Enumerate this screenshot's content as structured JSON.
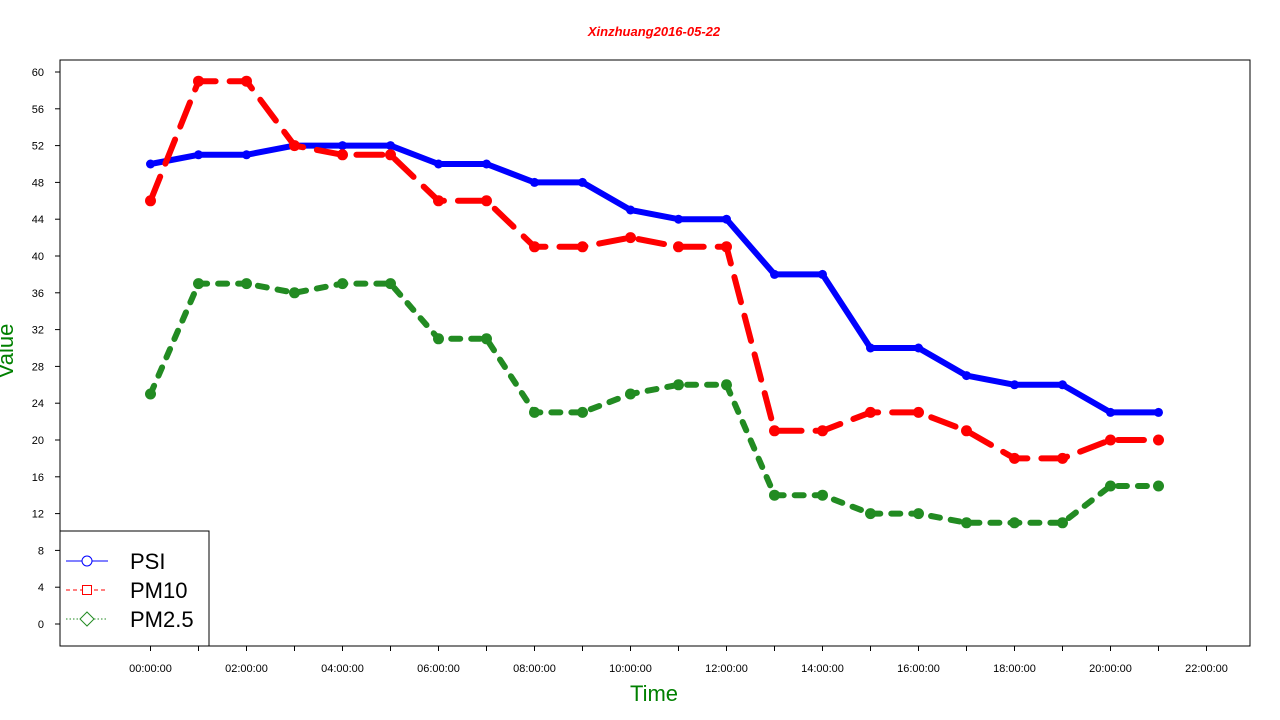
{
  "chart_data": {
    "type": "line",
    "title": "Xinzhuang2016-05-22",
    "xlabel": "Time",
    "ylabel": "Value",
    "x": [
      "00:00:00",
      "01:00:00",
      "02:00:00",
      "03:00:00",
      "04:00:00",
      "05:00:00",
      "06:00:00",
      "07:00:00",
      "08:00:00",
      "09:00:00",
      "10:00:00",
      "11:00:00",
      "12:00:00",
      "13:00:00",
      "14:00:00",
      "15:00:00",
      "16:00:00",
      "17:00:00",
      "18:00:00",
      "19:00:00",
      "20:00:00",
      "21:00:00"
    ],
    "x_tick_labels": [
      "00:00:00",
      "02:00:00",
      "04:00:00",
      "06:00:00",
      "08:00:00",
      "10:00:00",
      "12:00:00",
      "14:00:00",
      "16:00:00",
      "18:00:00",
      "20:00:00",
      "22:00:00"
    ],
    "y_ticks": [
      0,
      4,
      8,
      12,
      16,
      20,
      24,
      28,
      32,
      36,
      40,
      44,
      48,
      52,
      56,
      60
    ],
    "ylim": [
      -2,
      61.5
    ],
    "grid": false,
    "legend_position": "bottom-left",
    "series": [
      {
        "name": "PSI",
        "color": "#0000ff",
        "line_style": "solid",
        "marker": "circle",
        "values": [
          50,
          51,
          51,
          52,
          52,
          52,
          50,
          50,
          48,
          48,
          45,
          44,
          44,
          38,
          38,
          30,
          30,
          27,
          26,
          26,
          23,
          23
        ]
      },
      {
        "name": "PM10",
        "color": "#ff0000",
        "line_style": "dashed",
        "marker": "square",
        "values": [
          46,
          59,
          59,
          52,
          51,
          51,
          46,
          46,
          41,
          41,
          42,
          41,
          41,
          21,
          21,
          23,
          23,
          21,
          18,
          18,
          20,
          20
        ]
      },
      {
        "name": "PM2.5",
        "color": "#228b22",
        "line_style": "dotted",
        "marker": "diamond",
        "values": [
          25,
          37,
          37,
          36,
          37,
          37,
          31,
          31,
          23,
          23,
          25,
          26,
          26,
          14,
          14,
          12,
          12,
          11,
          11,
          11,
          15,
          15
        ]
      }
    ],
    "colors": {
      "title": "#ff0000",
      "axis_titles": "#008000"
    }
  }
}
